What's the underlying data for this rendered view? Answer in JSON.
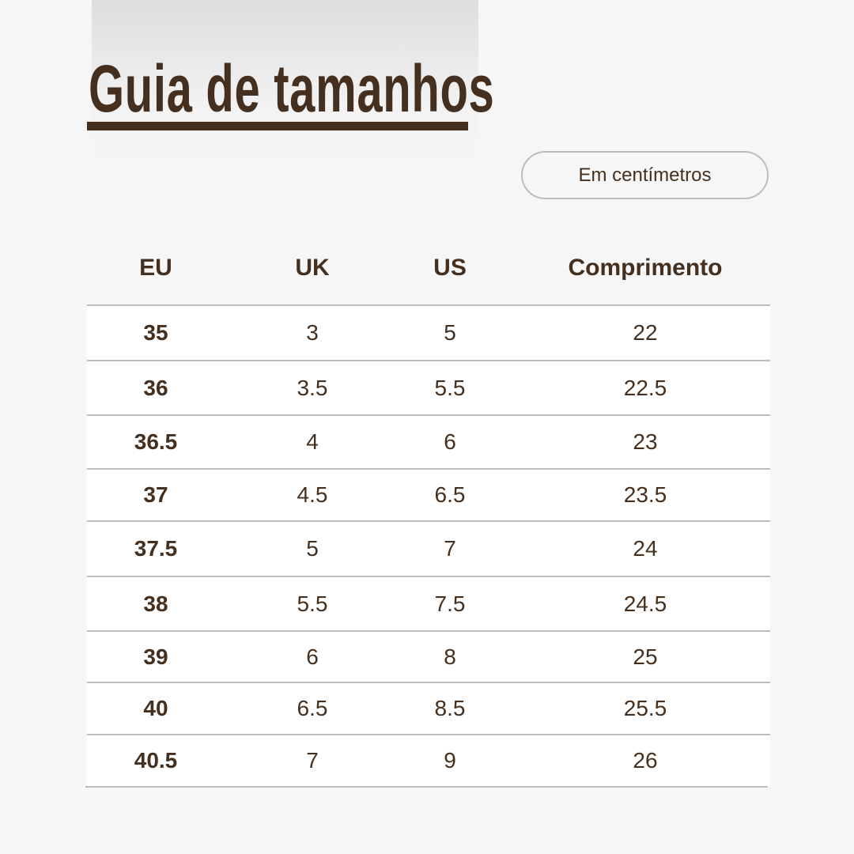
{
  "header": {
    "title": "Guia de tamanhos",
    "unit_label": "Em centímetros"
  },
  "colors": {
    "text": "#45301f",
    "background": "#f6f6f6",
    "divider": "#bdbdbd"
  },
  "table": {
    "columns": [
      "EU",
      "UK",
      "US",
      "Comprimento"
    ],
    "rows": [
      [
        "35",
        "3",
        "5",
        "22"
      ],
      [
        "36",
        "3.5",
        "5.5",
        "22.5"
      ],
      [
        "36.5",
        "4",
        "6",
        "23"
      ],
      [
        "37",
        "4.5",
        "6.5",
        "23.5"
      ],
      [
        "37.5",
        "5",
        "7",
        "24"
      ],
      [
        "38",
        "5.5",
        "7.5",
        "24.5"
      ],
      [
        "39",
        "6",
        "8",
        "25"
      ],
      [
        "40",
        "6.5",
        "8.5",
        "25.5"
      ],
      [
        "40.5",
        "7",
        "9",
        "26"
      ]
    ]
  }
}
